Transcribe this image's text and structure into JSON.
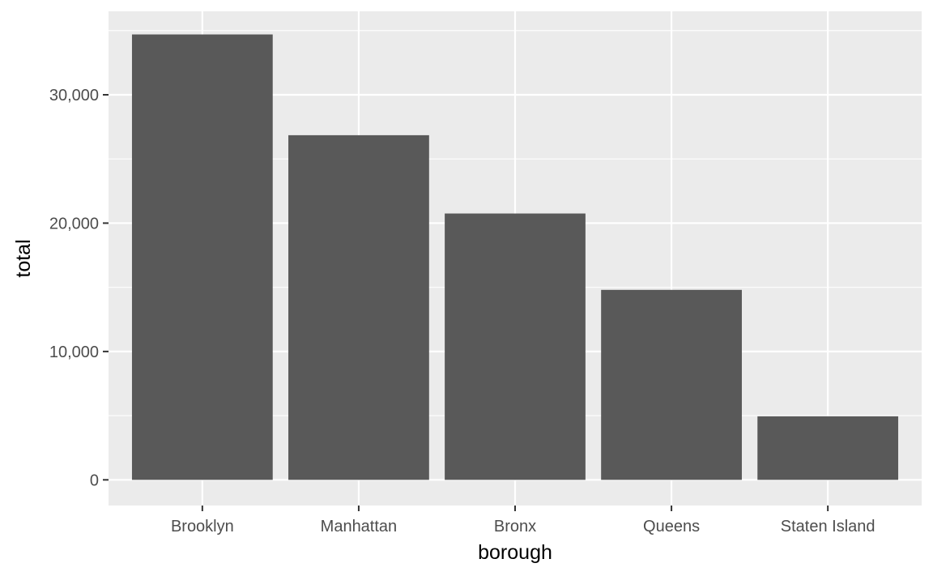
{
  "chart_data": {
    "type": "bar",
    "categories": [
      "Brooklyn",
      "Manhattan",
      "Bronx",
      "Queens",
      "Staten Island"
    ],
    "values": [
      34700,
      26850,
      20750,
      14800,
      4950
    ],
    "xlabel": "borough",
    "ylabel": "total",
    "ylim": [
      -2000,
      36500
    ],
    "yticks": [
      0,
      10000,
      20000,
      30000
    ],
    "ytick_labels": [
      "0",
      "10,000",
      "20,000",
      "30,000"
    ],
    "grid": true,
    "legend": "none"
  },
  "colors": {
    "panel_background": "#ebebeb",
    "gridline": "#ffffff",
    "bar_fill": "#595959",
    "tick_mark": "#333333",
    "tick_text": "#4d4d4d"
  }
}
